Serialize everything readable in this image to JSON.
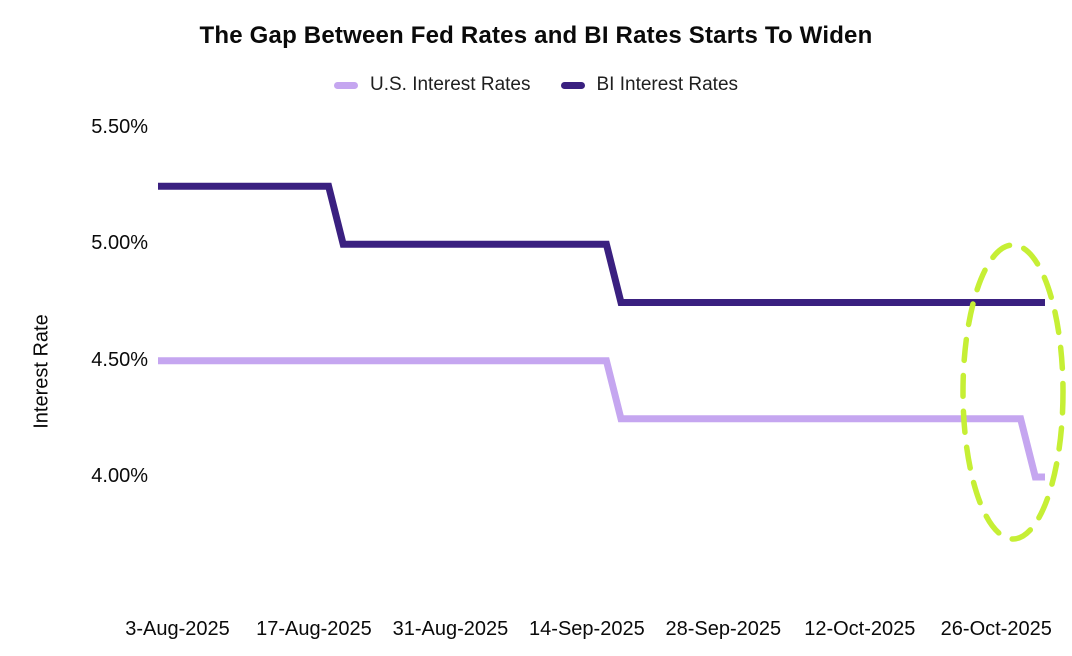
{
  "chart_data": {
    "type": "line",
    "title": "The Gap Between Fed Rates and BI Rates Starts To Widen",
    "xlabel": "",
    "ylabel": "Interest Rate",
    "grid": false,
    "legend_position": "top-center",
    "background_color": "#ffffff",
    "text_color": "#0a0a0a",
    "ylim": [
      3.75,
      5.75
    ],
    "xlim_days": [
      0,
      91
    ],
    "x_start_date": "1-Aug-2025",
    "x_end_date": "31-Oct-2025",
    "y_ticks": [
      {
        "label": "5.50%",
        "value": 5.5
      },
      {
        "label": "5.00%",
        "value": 5.0
      },
      {
        "label": "4.50%",
        "value": 4.5
      },
      {
        "label": "4.00%",
        "value": 4.0
      }
    ],
    "x_ticks": [
      {
        "label": "3-Aug-2025",
        "day": 2
      },
      {
        "label": "17-Aug-2025",
        "day": 16
      },
      {
        "label": "31-Aug-2025",
        "day": 30
      },
      {
        "label": "14-Sep-2025",
        "day": 44
      },
      {
        "label": "28-Sep-2025",
        "day": 58
      },
      {
        "label": "12-Oct-2025",
        "day": 72
      },
      {
        "label": "26-Oct-2025",
        "day": 86
      }
    ],
    "series": [
      {
        "name": "U.S. Interest Rates",
        "color": "#c5a6f0",
        "line_width": 7,
        "points": [
          {
            "day": 0,
            "date": "1-Aug-2025",
            "value": 4.5
          },
          {
            "day": 46,
            "date": "16-Sep-2025",
            "value": 4.5
          },
          {
            "day": 47.5,
            "date": "17-Sep-2025",
            "value": 4.25
          },
          {
            "day": 88.5,
            "date": "28-Oct-2025",
            "value": 4.25
          },
          {
            "day": 90,
            "date": "29-Oct-2025",
            "value": 4.0
          },
          {
            "day": 91,
            "date": "31-Oct-2025",
            "value": 4.0
          }
        ]
      },
      {
        "name": "BI Interest Rates",
        "color": "#3a2080",
        "line_width": 7,
        "points": [
          {
            "day": 0,
            "date": "1-Aug-2025",
            "value": 5.25
          },
          {
            "day": 17.5,
            "date": "18-Aug-2025",
            "value": 5.25
          },
          {
            "day": 19,
            "date": "20-Aug-2025",
            "value": 5.0
          },
          {
            "day": 46,
            "date": "16-Sep-2025",
            "value": 5.0
          },
          {
            "day": 47.5,
            "date": "17-Sep-2025",
            "value": 4.75
          },
          {
            "day": 91,
            "date": "31-Oct-2025",
            "value": 4.75
          }
        ]
      }
    ],
    "annotation": {
      "shape": "dashed-ellipse",
      "color": "#c6ef35"
    }
  }
}
